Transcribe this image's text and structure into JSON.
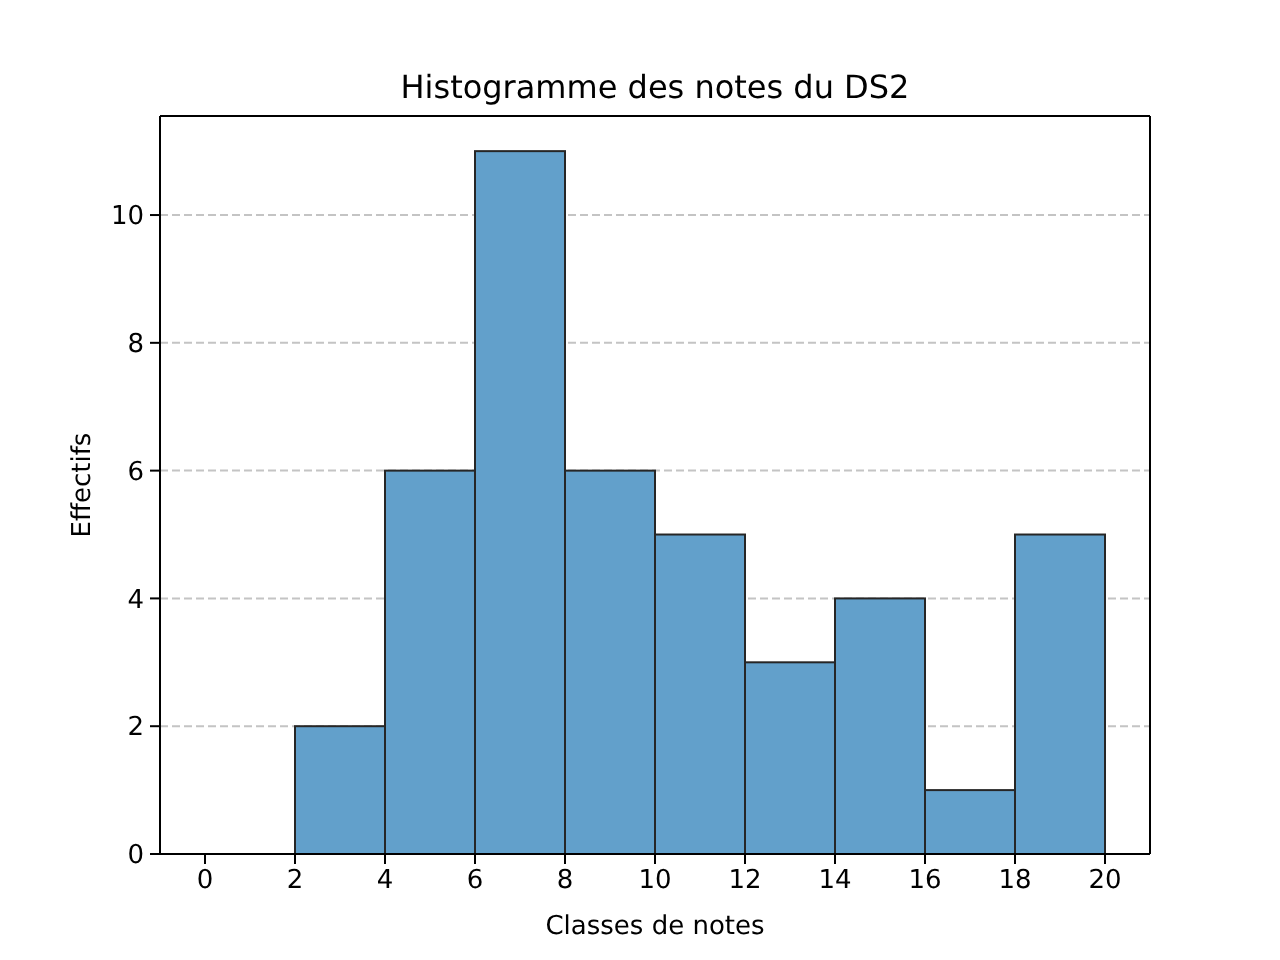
{
  "chart_data": {
    "type": "histogram",
    "title": "Histogramme des notes du DS2",
    "xlabel": "Classes de notes",
    "ylabel": "Effectifs",
    "bins": [
      0,
      2,
      4,
      6,
      8,
      10,
      12,
      14,
      16,
      18,
      20
    ],
    "values": [
      0,
      2,
      6,
      11,
      6,
      5,
      3,
      4,
      1,
      5
    ],
    "color": "#62a0cb",
    "xlim": [
      -1,
      21
    ],
    "xticks": [
      0,
      2,
      4,
      6,
      8,
      10,
      12,
      14,
      16,
      18,
      20
    ],
    "ylim": [
      0,
      11.55
    ],
    "yticks": [
      0,
      2,
      4,
      6,
      8,
      10
    ],
    "grid": "y"
  }
}
